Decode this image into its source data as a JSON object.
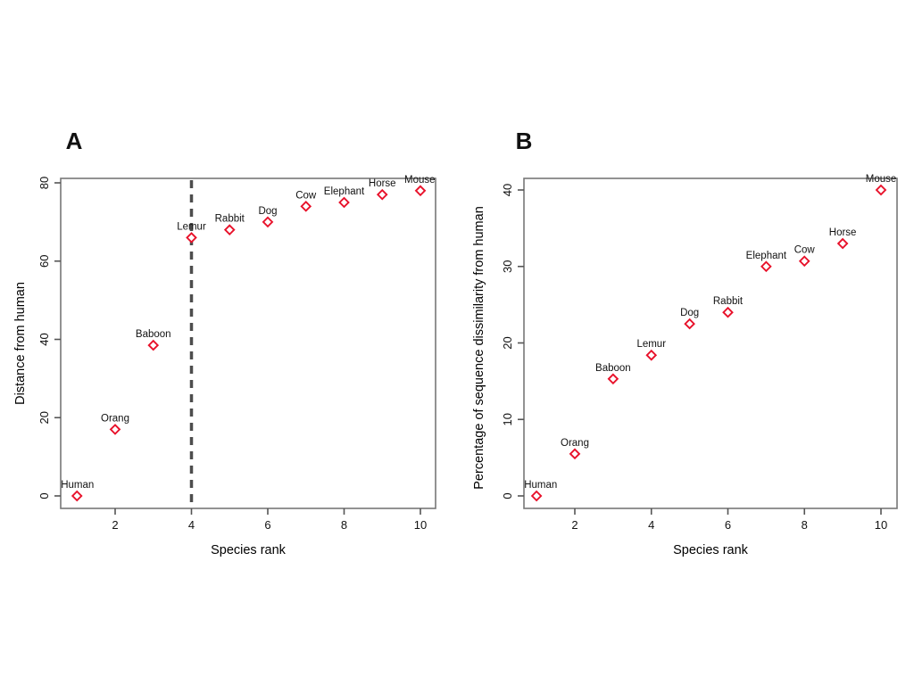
{
  "figure": {
    "background_color": "#ffffff",
    "panel_count": 2
  },
  "style": {
    "marker_shape": "open-diamond",
    "marker_color": "#e8112a",
    "marker_fill": "#ffffff",
    "frame_color": "#777777",
    "tick_color": "#555555",
    "dash_line_color": "#4d4d4d",
    "text_color": "#111111"
  },
  "chart_data": [
    {
      "type": "scatter",
      "panel_label": "A",
      "xlabel": "Species rank",
      "ylabel": "Distance from human",
      "xlim": [
        0.6,
        10.4
      ],
      "ylim": [
        0,
        80
      ],
      "x_ticks": [
        2,
        4,
        6,
        8,
        10
      ],
      "y_ticks": [
        0,
        20,
        40,
        60,
        80
      ],
      "grid": false,
      "legend": null,
      "annotations": {
        "dashed_vline_x": 4
      },
      "points": [
        {
          "label": "Human",
          "x": 1,
          "y": 0
        },
        {
          "label": "Orang",
          "x": 2,
          "y": 17
        },
        {
          "label": "Baboon",
          "x": 3,
          "y": 38.5
        },
        {
          "label": "Lemur",
          "x": 4,
          "y": 66
        },
        {
          "label": "Rabbit",
          "x": 5,
          "y": 68
        },
        {
          "label": "Dog",
          "x": 6,
          "y": 70
        },
        {
          "label": "Cow",
          "x": 7,
          "y": 74
        },
        {
          "label": "Elephant",
          "x": 8,
          "y": 75
        },
        {
          "label": "Horse",
          "x": 9,
          "y": 77
        },
        {
          "label": "Mouse",
          "x": 10,
          "y": 78
        }
      ]
    },
    {
      "type": "scatter",
      "panel_label": "B",
      "xlabel": "Species rank",
      "ylabel": "Percentage of sequence dissimilarity from human",
      "xlim": [
        0.6,
        10.4
      ],
      "ylim": [
        0,
        40
      ],
      "x_ticks": [
        2,
        4,
        6,
        8,
        10
      ],
      "y_ticks": [
        0,
        10,
        20,
        30,
        40
      ],
      "grid": false,
      "legend": null,
      "annotations": {
        "dashed_vline_x": null
      },
      "points": [
        {
          "label": "Human",
          "x": 1,
          "y": 0
        },
        {
          "label": "Orang",
          "x": 2,
          "y": 5.5
        },
        {
          "label": "Baboon",
          "x": 3,
          "y": 15.3
        },
        {
          "label": "Lemur",
          "x": 4,
          "y": 18.4
        },
        {
          "label": "Dog",
          "x": 5,
          "y": 22.5
        },
        {
          "label": "Rabbit",
          "x": 6,
          "y": 24
        },
        {
          "label": "Elephant",
          "x": 7,
          "y": 30
        },
        {
          "label": "Cow",
          "x": 8,
          "y": 30.7
        },
        {
          "label": "Horse",
          "x": 9,
          "y": 33
        },
        {
          "label": "Mouse",
          "x": 10,
          "y": 40
        }
      ]
    }
  ]
}
